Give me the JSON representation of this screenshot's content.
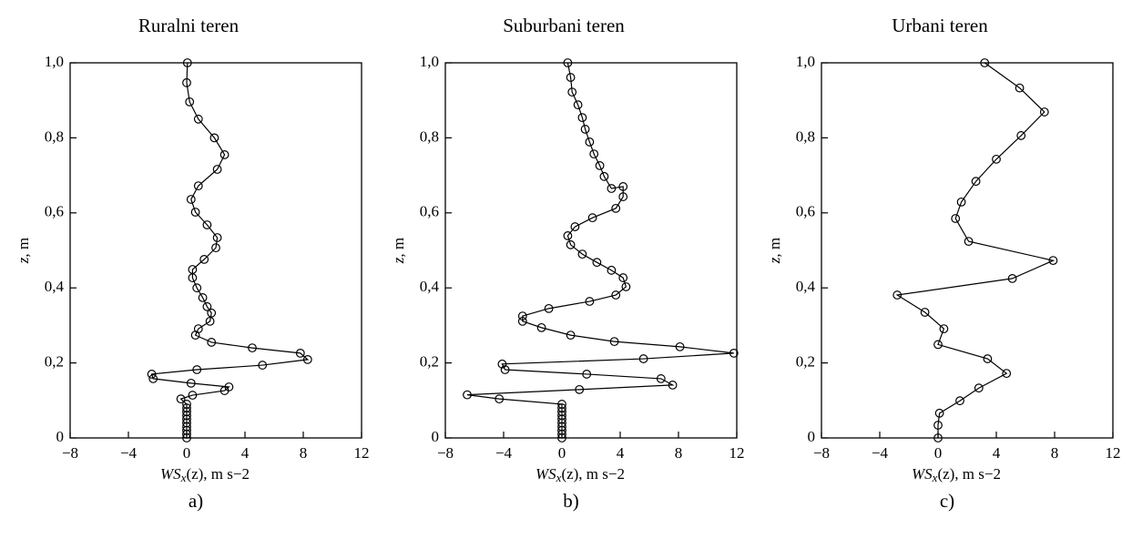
{
  "chart_data": [
    {
      "type": "line",
      "title": "Ruralni teren",
      "caption": "a)",
      "x_label": [
        "WS",
        "x",
        "(z), m s",
        "−2"
      ],
      "y_label": [
        "z",
        ", m"
      ],
      "xlim": [
        -8,
        12
      ],
      "ylim": [
        0,
        1
      ],
      "xticks": [
        {
          "value": -8,
          "label": "−8"
        },
        {
          "value": -4,
          "label": "−4"
        },
        0,
        4,
        8,
        12
      ],
      "yticks": [
        0,
        {
          "value": 0.2,
          "label": "0,2"
        },
        {
          "value": 0.4,
          "label": "0,4"
        },
        {
          "value": 0.6,
          "label": "0,6"
        },
        {
          "value": 0.8,
          "label": "0,8"
        },
        {
          "value": 1,
          "label": "1,0"
        }
      ],
      "color": "#000000",
      "x": [
        0.05,
        0,
        0.2,
        0.8,
        1.9,
        2.6,
        2.1,
        0.8,
        0.3,
        0.6,
        1.4,
        2.1,
        2.0,
        1.2,
        0.4,
        0.4,
        0.7,
        1.1,
        1.4,
        1.7,
        1.6,
        0.8,
        0.6,
        1.7,
        4.5,
        7.8,
        8.3,
        5.2,
        0.7,
        -2.4,
        -2.3,
        0.3,
        2.9,
        2.6,
        0.4,
        -0.4,
        0,
        0,
        0,
        0,
        0,
        0,
        0,
        0,
        0,
        0
      ],
      "values": [
        1.0,
        0.947,
        0.896,
        0.85,
        0.8,
        0.755,
        0.716,
        0.672,
        0.636,
        0.602,
        0.568,
        0.534,
        0.507,
        0.476,
        0.449,
        0.427,
        0.4,
        0.374,
        0.35,
        0.333,
        0.311,
        0.291,
        0.274,
        0.255,
        0.24,
        0.226,
        0.209,
        0.194,
        0.182,
        0.17,
        0.158,
        0.146,
        0.136,
        0.126,
        0.114,
        0.104,
        0.09,
        0.08,
        0.07,
        0.06,
        0.05,
        0.04,
        0.03,
        0.02,
        0.01,
        0
      ]
    },
    {
      "type": "line",
      "title": "Suburbani teren",
      "caption": "b)",
      "x_label": [
        "WS",
        "x",
        "(z), m s",
        "−2"
      ],
      "y_label": [
        "z",
        ", m"
      ],
      "xlim": [
        -8,
        12
      ],
      "ylim": [
        0,
        1
      ],
      "xticks": [
        {
          "value": -8,
          "label": "−8"
        },
        {
          "value": -4,
          "label": "−4"
        },
        0,
        4,
        8,
        12
      ],
      "yticks": [
        0,
        {
          "value": 0.2,
          "label": "0,2"
        },
        {
          "value": 0.4,
          "label": "0,4"
        },
        {
          "value": 0.6,
          "label": "0,6"
        },
        {
          "value": 0.8,
          "label": "0,8"
        },
        {
          "value": 1,
          "label": "1,0"
        }
      ],
      "color": "#000000",
      "x": [
        0.4,
        0.6,
        0.7,
        1.1,
        1.4,
        1.6,
        1.9,
        2.2,
        2.6,
        2.9,
        3.4,
        4.2,
        4.2,
        3.7,
        2.1,
        0.9,
        0.4,
        0.6,
        1.4,
        2.4,
        3.4,
        4.2,
        4.4,
        3.7,
        1.9,
        -0.9,
        -2.7,
        -2.7,
        -1.4,
        0.6,
        3.6,
        8.1,
        11.8,
        5.6,
        -4.1,
        -3.9,
        1.7,
        6.8,
        7.6,
        1.2,
        -6.5,
        -4.3,
        0,
        0,
        0,
        0,
        0,
        0,
        0,
        0,
        0,
        0
      ],
      "values": [
        1.0,
        0.961,
        0.922,
        0.888,
        0.854,
        0.823,
        0.789,
        0.757,
        0.726,
        0.697,
        0.665,
        0.67,
        0.643,
        0.612,
        0.587,
        0.563,
        0.539,
        0.515,
        0.49,
        0.468,
        0.447,
        0.427,
        0.403,
        0.381,
        0.364,
        0.345,
        0.325,
        0.311,
        0.294,
        0.274,
        0.257,
        0.243,
        0.226,
        0.211,
        0.197,
        0.182,
        0.17,
        0.158,
        0.141,
        0.129,
        0.115,
        0.104,
        0.09,
        0.08,
        0.07,
        0.06,
        0.05,
        0.04,
        0.03,
        0.02,
        0.01,
        0
      ]
    },
    {
      "type": "line",
      "title": "Urbani teren",
      "caption": "c)",
      "x_label": [
        "WS",
        "x",
        "(z), m s",
        "−2"
      ],
      "y_label": [
        "z",
        ", m"
      ],
      "xlim": [
        -8,
        12
      ],
      "ylim": [
        0,
        1
      ],
      "xticks": [
        {
          "value": -8,
          "label": "−8"
        },
        {
          "value": -4,
          "label": "−4"
        },
        0,
        4,
        8,
        12
      ],
      "yticks": [
        0,
        {
          "value": 0.2,
          "label": "0,2"
        },
        {
          "value": 0.4,
          "label": "0,4"
        },
        {
          "value": 0.6,
          "label": "0,6"
        },
        {
          "value": 0.8,
          "label": "0,8"
        },
        {
          "value": 1,
          "label": "1,0"
        }
      ],
      "color": "#000000",
      "x": [
        3.2,
        5.6,
        7.3,
        5.7,
        4.0,
        2.6,
        1.6,
        1.2,
        2.1,
        7.9,
        5.1,
        -2.8,
        -0.9,
        0.4,
        0.0,
        3.4,
        4.7,
        2.8,
        1.5,
        0.1,
        0,
        0
      ],
      "values": [
        1.0,
        0.933,
        0.869,
        0.806,
        0.743,
        0.684,
        0.629,
        0.585,
        0.524,
        0.473,
        0.425,
        0.381,
        0.335,
        0.291,
        0.249,
        0.211,
        0.172,
        0.133,
        0.099,
        0.066,
        0.034,
        0
      ]
    }
  ]
}
